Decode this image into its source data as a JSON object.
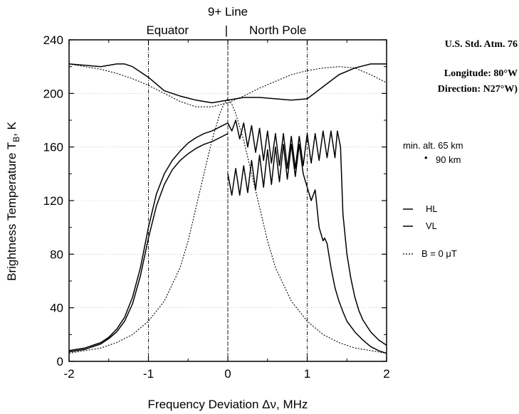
{
  "chart_data": {
    "type": "line",
    "title": "9+ Line",
    "xlabel": "Frequency Deviation Δν, MHz",
    "ylabel": "Brightness Temperature T",
    "ylabel_sub": "B",
    "ylabel_unit": ", K",
    "xlim": [
      -2,
      2
    ],
    "ylim": [
      0,
      240
    ],
    "xticks": [
      "-2",
      "-1",
      "0",
      "1",
      "2"
    ],
    "yticks": [
      "0",
      "40",
      "80",
      "120",
      "160",
      "200",
      "240"
    ],
    "region_labels": {
      "left": "Equator",
      "divider": "|",
      "right": "North Pole"
    },
    "vertical_lines": [
      -1,
      0,
      1
    ],
    "series": [
      {
        "name": "HL",
        "style": "solid",
        "x": [
          -2,
          -1.8,
          -1.6,
          -1.5,
          -1.4,
          -1.3,
          -1.2,
          -1.1,
          -1.0,
          -0.9,
          -0.8,
          -0.7,
          -0.6,
          -0.5,
          -0.4,
          -0.3,
          -0.2,
          -0.1,
          0.0
        ],
        "y": [
          8,
          10,
          14,
          18,
          24,
          33,
          48,
          70,
          100,
          125,
          140,
          150,
          157,
          163,
          167,
          170,
          172,
          175,
          178
        ]
      },
      {
        "name": "HL",
        "style": "solid",
        "x": [
          0.0,
          0.05,
          0.1,
          0.15,
          0.2,
          0.25,
          0.3,
          0.35,
          0.4,
          0.45,
          0.5,
          0.55,
          0.6,
          0.65,
          0.7,
          0.75,
          0.8,
          0.85,
          0.9,
          0.95,
          1.0,
          1.05,
          1.1,
          1.15,
          1.2,
          1.25,
          1.3,
          1.35,
          1.38,
          1.42,
          1.45,
          1.5,
          1.55,
          1.6,
          1.65,
          1.7,
          1.8,
          1.9,
          2.0
        ],
        "y": [
          178,
          172,
          180,
          166,
          178,
          160,
          176,
          156,
          174,
          150,
          172,
          148,
          170,
          146,
          170,
          144,
          168,
          144,
          168,
          146,
          170,
          148,
          170,
          150,
          172,
          152,
          172,
          152,
          172,
          160,
          110,
          80,
          62,
          48,
          38,
          31,
          22,
          16,
          12
        ]
      },
      {
        "name": "VL",
        "style": "solid",
        "x": [
          -2,
          -1.8,
          -1.6,
          -1.5,
          -1.4,
          -1.3,
          -1.2,
          -1.1,
          -1.0,
          -0.9,
          -0.8,
          -0.7,
          -0.6,
          -0.5,
          -0.4,
          -0.3,
          -0.2,
          -0.1,
          0.0
        ],
        "y": [
          7,
          9,
          13,
          17,
          22,
          30,
          43,
          64,
          92,
          116,
          132,
          143,
          150,
          155,
          159,
          162,
          164,
          167,
          170
        ]
      },
      {
        "name": "VL",
        "style": "solid",
        "x": [
          0.0,
          0.05,
          0.1,
          0.15,
          0.2,
          0.25,
          0.3,
          0.35,
          0.4,
          0.45,
          0.5,
          0.55,
          0.6,
          0.65,
          0.7,
          0.75,
          0.8,
          0.85,
          0.9,
          0.95,
          1.0,
          1.05,
          1.1,
          1.15,
          1.2,
          1.22,
          1.25,
          1.3,
          1.35,
          1.4,
          1.45,
          1.5,
          1.6,
          1.7,
          1.8,
          1.9,
          2.0
        ],
        "y": [
          140,
          124,
          144,
          124,
          146,
          126,
          150,
          128,
          154,
          130,
          158,
          132,
          160,
          134,
          162,
          136,
          162,
          138,
          162,
          140,
          130,
          120,
          128,
          100,
          90,
          92,
          88,
          70,
          55,
          45,
          37,
          30,
          22,
          16,
          11,
          8,
          6
        ]
      },
      {
        "name": "HL",
        "style": "solid",
        "x": [
          -2,
          -1.8,
          -1.6,
          -1.4,
          -1.3,
          -1.2,
          -1.0,
          -0.8,
          -0.6,
          -0.4,
          -0.2,
          0.0,
          0.2,
          0.4,
          0.6,
          0.8,
          1.0,
          1.2,
          1.4,
          1.6,
          1.8,
          2.0
        ],
        "y": [
          222,
          221,
          220,
          222,
          222,
          220,
          212,
          202,
          198,
          195,
          193,
          195,
          197,
          197,
          196,
          195,
          196,
          205,
          214,
          219,
          222,
          222
        ]
      },
      {
        "name": "B = 0 μT",
        "style": "dotted",
        "x": [
          -2.0,
          -1.8,
          -1.6,
          -1.4,
          -1.2,
          -1.0,
          -0.8,
          -0.6,
          -0.5,
          -0.4,
          -0.3,
          -0.2,
          -0.1,
          -0.05,
          0.0,
          0.05,
          0.1,
          0.2,
          0.3,
          0.4,
          0.5,
          0.6,
          0.8,
          1.0,
          1.2,
          1.4,
          1.6,
          1.8,
          2.0
        ],
        "y": [
          6,
          8,
          10,
          14,
          20,
          30,
          45,
          70,
          90,
          115,
          140,
          165,
          185,
          192,
          196,
          192,
          185,
          165,
          140,
          115,
          90,
          70,
          45,
          30,
          20,
          14,
          10,
          8,
          6
        ]
      },
      {
        "name": "B = 0 μT",
        "style": "dotted",
        "x": [
          -2.0,
          -1.8,
          -1.6,
          -1.4,
          -1.2,
          -1.0,
          -0.8,
          -0.6,
          -0.4,
          -0.2,
          0.0,
          0.2,
          0.4,
          0.6,
          0.8,
          1.0,
          1.2,
          1.4,
          1.6,
          1.8,
          2.0
        ],
        "y": [
          222,
          220,
          218,
          215,
          211,
          206,
          200,
          194,
          190,
          190,
          193,
          198,
          204,
          209,
          214,
          217,
          219,
          220,
          219,
          214,
          208
        ]
      }
    ]
  },
  "annotations": {
    "atmosphere": "U.S. Std. Atm. 76",
    "longitude": "Longitude: 80°W",
    "direction": "Direction: N27°W)",
    "min_alt_1": "min. alt. 65 km",
    "min_alt_2_marker": "•",
    "min_alt_2": "90 km",
    "legend_hl": "HL",
    "legend_vl": "VL",
    "legend_b0": "B = 0 μT"
  }
}
